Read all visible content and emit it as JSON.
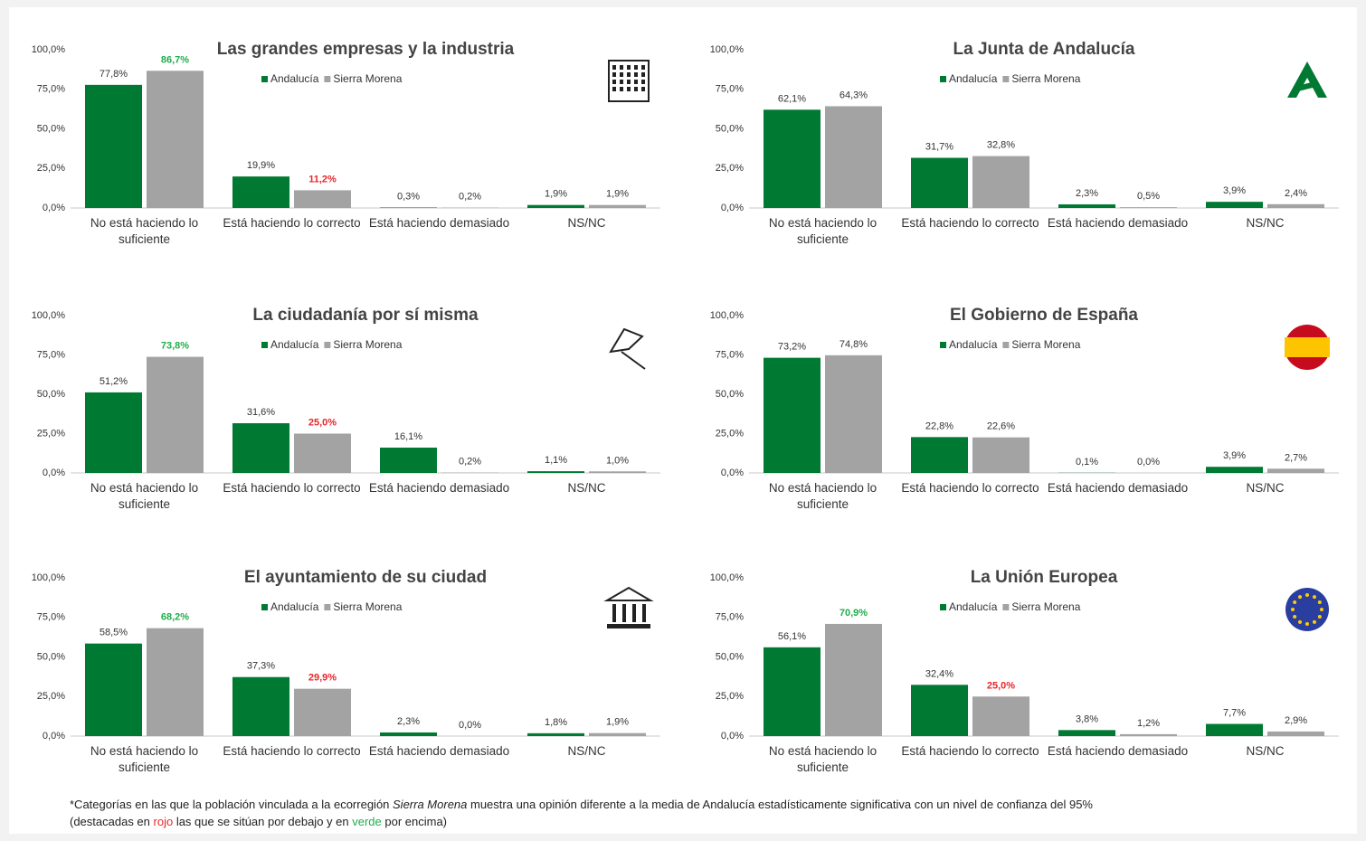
{
  "chart_data": [
    {
      "type": "bar",
      "title": "Las grandes empresas y la industria",
      "categories": [
        "No está haciendo lo suficiente",
        "Está haciendo lo correcto",
        "Está haciendo demasiado",
        "NS/NC"
      ],
      "series": [
        {
          "name": "Andalucía",
          "color": "#007a33",
          "values": [
            77.8,
            19.9,
            0.3,
            1.9
          ],
          "value_labels": [
            "77,8%",
            "19,9%",
            "0,3%",
            "1,9%"
          ],
          "label_colors": [
            "#333333",
            "#333333",
            "#333333",
            "#333333"
          ]
        },
        {
          "name": "Sierra Morena",
          "color": "#a3a3a3",
          "values": [
            86.7,
            11.2,
            0.2,
            1.9
          ],
          "value_labels": [
            "86,7%",
            "11,2%",
            "0,2%",
            "1,9%"
          ],
          "label_colors": [
            "#1fae4b",
            "#e8262b",
            "#333333",
            "#333333"
          ]
        }
      ],
      "ylim": [
        0,
        100
      ],
      "yticks": [
        {
          "value": 0,
          "label": "0,0%"
        },
        {
          "value": 25,
          "label": "25,0%"
        },
        {
          "value": 50,
          "label": "50,0%"
        },
        {
          "value": 75,
          "label": "75,0%"
        },
        {
          "value": 100,
          "label": "100,0%"
        }
      ],
      "grid": false
    },
    {
      "type": "bar",
      "title": "La Junta de Andalucía",
      "categories": [
        "No está haciendo lo suficiente",
        "Está haciendo lo correcto",
        "Está haciendo demasiado",
        "NS/NC"
      ],
      "series": [
        {
          "name": "Andalucía",
          "color": "#007a33",
          "values": [
            62.1,
            31.7,
            2.3,
            3.9
          ],
          "value_labels": [
            "62,1%",
            "31,7%",
            "2,3%",
            "3,9%"
          ],
          "label_colors": [
            "#333333",
            "#333333",
            "#333333",
            "#333333"
          ]
        },
        {
          "name": "Sierra Morena",
          "color": "#a3a3a3",
          "values": [
            64.3,
            32.8,
            0.5,
            2.4
          ],
          "value_labels": [
            "64,3%",
            "32,8%",
            "0,5%",
            "2,4%"
          ],
          "label_colors": [
            "#333333",
            "#333333",
            "#333333",
            "#333333"
          ]
        }
      ],
      "ylim": [
        0,
        100
      ],
      "yticks": [
        {
          "value": 0,
          "label": "0,0%"
        },
        {
          "value": 25,
          "label": "25,0%"
        },
        {
          "value": 50,
          "label": "50,0%"
        },
        {
          "value": 75,
          "label": "75,0%"
        },
        {
          "value": 100,
          "label": "100,0%"
        }
      ],
      "grid": false
    },
    {
      "type": "bar",
      "title": "La ciudadanía por sí misma",
      "categories": [
        "No está haciendo lo suficiente",
        "Está haciendo lo correcto",
        "Está haciendo demasiado",
        "NS/NC"
      ],
      "series": [
        {
          "name": "Andalucía",
          "color": "#007a33",
          "values": [
            51.2,
            31.6,
            16.1,
            1.1
          ],
          "value_labels": [
            "51,2%",
            "31,6%",
            "16,1%",
            "1,1%"
          ],
          "label_colors": [
            "#333333",
            "#333333",
            "#333333",
            "#333333"
          ]
        },
        {
          "name": "Sierra Morena",
          "color": "#a3a3a3",
          "values": [
            73.8,
            25.0,
            0.2,
            1.0
          ],
          "value_labels": [
            "73,8%",
            "25,0%",
            "0,2%",
            "1,0%"
          ],
          "label_colors": [
            "#1fae4b",
            "#e8262b",
            "#333333",
            "#333333"
          ]
        }
      ],
      "ylim": [
        0,
        100
      ],
      "yticks": [
        {
          "value": 0,
          "label": "0,0%"
        },
        {
          "value": 25,
          "label": "25,0%"
        },
        {
          "value": 50,
          "label": "50,0%"
        },
        {
          "value": 75,
          "label": "75,0%"
        },
        {
          "value": 100,
          "label": "100,0%"
        }
      ],
      "grid": false
    },
    {
      "type": "bar",
      "title": "El Gobierno de España",
      "categories": [
        "No está haciendo lo suficiente",
        "Está haciendo lo correcto",
        "Está haciendo demasiado",
        "NS/NC"
      ],
      "series": [
        {
          "name": "Andalucía",
          "color": "#007a33",
          "values": [
            73.2,
            22.8,
            0.1,
            3.9
          ],
          "value_labels": [
            "73,2%",
            "22,8%",
            "0,1%",
            "3,9%"
          ],
          "label_colors": [
            "#333333",
            "#333333",
            "#333333",
            "#333333"
          ]
        },
        {
          "name": "Sierra Morena",
          "color": "#a3a3a3",
          "values": [
            74.8,
            22.6,
            0.0,
            2.7
          ],
          "value_labels": [
            "74,8%",
            "22,6%",
            "0,0%",
            "2,7%"
          ],
          "label_colors": [
            "#333333",
            "#333333",
            "#333333",
            "#333333"
          ]
        }
      ],
      "ylim": [
        0,
        100
      ],
      "yticks": [
        {
          "value": 0,
          "label": "0,0%"
        },
        {
          "value": 25,
          "label": "25,0%"
        },
        {
          "value": 50,
          "label": "50,0%"
        },
        {
          "value": 75,
          "label": "75,0%"
        },
        {
          "value": 100,
          "label": "100,0%"
        }
      ],
      "grid": false
    },
    {
      "type": "bar",
      "title": "El ayuntamiento de su ciudad",
      "categories": [
        "No está haciendo lo suficiente",
        "Está haciendo lo correcto",
        "Está haciendo demasiado",
        "NS/NC"
      ],
      "series": [
        {
          "name": "Andalucía",
          "color": "#007a33",
          "values": [
            58.5,
            37.3,
            2.3,
            1.8
          ],
          "value_labels": [
            "58,5%",
            "37,3%",
            "2,3%",
            "1,8%"
          ],
          "label_colors": [
            "#333333",
            "#333333",
            "#333333",
            "#333333"
          ]
        },
        {
          "name": "Sierra Morena",
          "color": "#a3a3a3",
          "values": [
            68.2,
            29.9,
            0.0,
            1.9
          ],
          "value_labels": [
            "68,2%",
            "29,9%",
            "0,0%",
            "1,9%"
          ],
          "label_colors": [
            "#1fae4b",
            "#e8262b",
            "#333333",
            "#333333"
          ]
        }
      ],
      "ylim": [
        0,
        100
      ],
      "yticks": [
        {
          "value": 0,
          "label": "0,0%"
        },
        {
          "value": 25,
          "label": "25,0%"
        },
        {
          "value": 50,
          "label": "50,0%"
        },
        {
          "value": 75,
          "label": "75,0%"
        },
        {
          "value": 100,
          "label": "100,0%"
        }
      ],
      "grid": false
    },
    {
      "type": "bar",
      "title": "La Unión Europea",
      "categories": [
        "No está haciendo lo suficiente",
        "Está haciendo lo correcto",
        "Está haciendo demasiado",
        "NS/NC"
      ],
      "series": [
        {
          "name": "Andalucía",
          "color": "#007a33",
          "values": [
            56.1,
            32.4,
            3.8,
            7.7
          ],
          "value_labels": [
            "56,1%",
            "32,4%",
            "3,8%",
            "7,7%"
          ],
          "label_colors": [
            "#333333",
            "#333333",
            "#333333",
            "#333333"
          ]
        },
        {
          "name": "Sierra Morena",
          "color": "#a3a3a3",
          "values": [
            70.9,
            25.0,
            1.2,
            2.9
          ],
          "value_labels": [
            "70,9%",
            "25,0%",
            "1,2%",
            "2,9%"
          ],
          "label_colors": [
            "#1fae4b",
            "#e8262b",
            "#333333",
            "#333333"
          ]
        }
      ],
      "ylim": [
        0,
        100
      ],
      "yticks": [
        {
          "value": 0,
          "label": "0,0%"
        },
        {
          "value": 25,
          "label": "25,0%"
        },
        {
          "value": 50,
          "label": "50,0%"
        },
        {
          "value": 75,
          "label": "75,0%"
        },
        {
          "value": 100,
          "label": "100,0%"
        }
      ],
      "grid": false
    }
  ],
  "footnote": {
    "parts": [
      {
        "text": "*Categorías en las que la población vinculada a la ecorregión ",
        "style": "normal"
      },
      {
        "text": "Sierra Morena",
        "style": "italic"
      },
      {
        "text": " muestra una opinión diferente a la media de Andalucía estadísticamente significativa con un nivel de confianza del 95%",
        "style": "normal"
      }
    ],
    "line2": [
      {
        "text": "(destacadas en ",
        "color": "#222222"
      },
      {
        "text": "rojo",
        "color": "#e8262b"
      },
      {
        "text": " las que se sitúan por debajo y en ",
        "color": "#222222"
      },
      {
        "text": "verde",
        "color": "#1fae4b"
      },
      {
        "text": " por encima)",
        "color": "#222222"
      }
    ]
  }
}
